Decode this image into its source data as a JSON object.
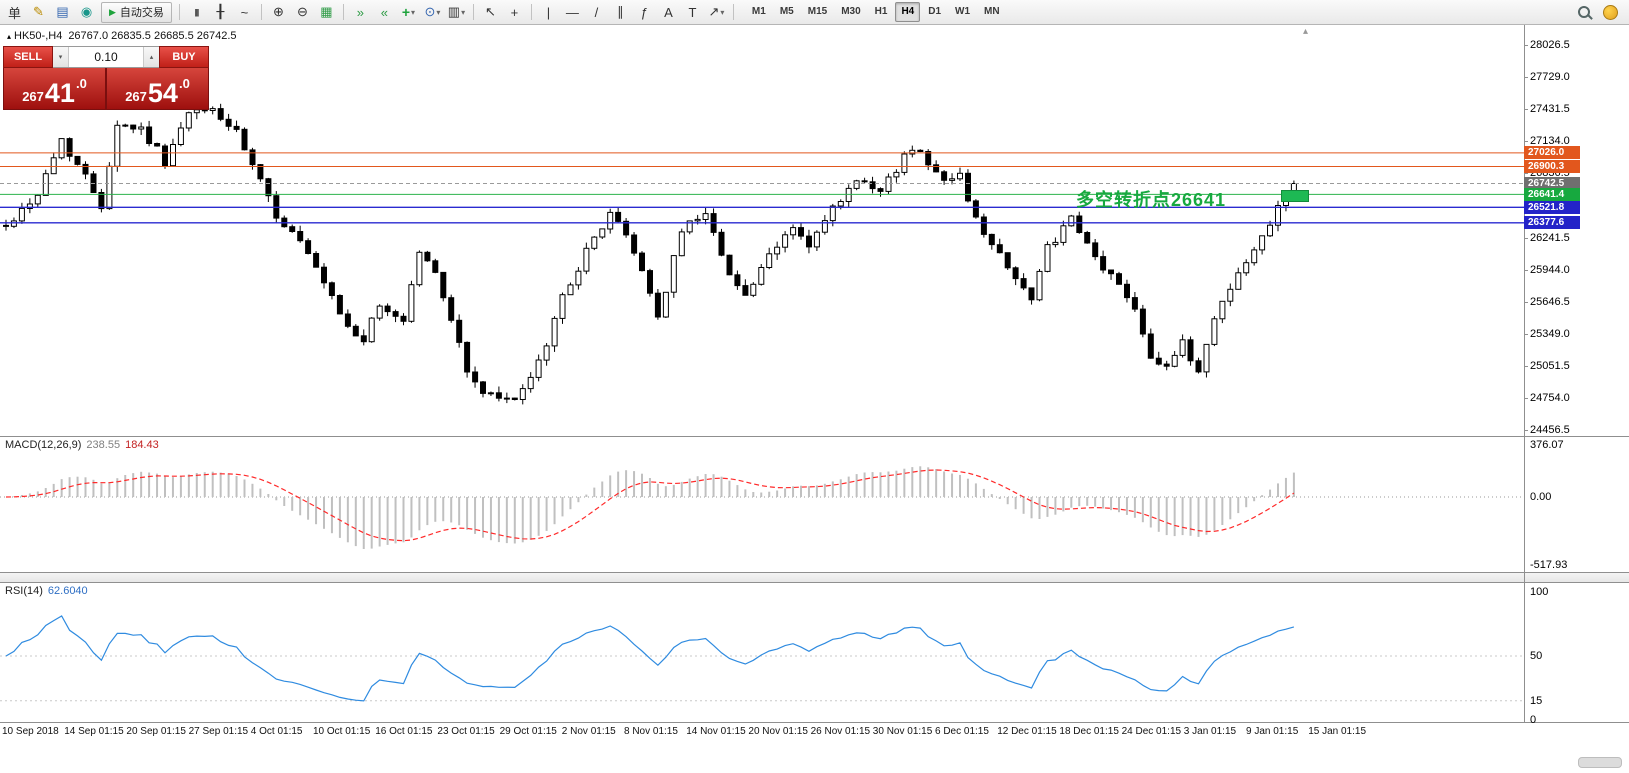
{
  "toolbar": {
    "items": [
      {
        "name": "new-order-icon",
        "glyph": "单"
      },
      {
        "name": "metaeditor-icon",
        "glyph": "✎",
        "color": "#b98a00"
      },
      {
        "name": "terminal-icon",
        "glyph": "▤",
        "color": "#3566b0"
      },
      {
        "name": "market-icon",
        "glyph": "◉",
        "color": "#18968a"
      },
      {
        "name": "autotrading-button",
        "glyph": "▶",
        "label": "自动交易",
        "glyph_color": "#1fa33d",
        "type": "button"
      },
      {
        "sep": true
      },
      {
        "name": "bar-chart-icon",
        "glyph": "|||",
        "small": true
      },
      {
        "name": "candlestick-icon",
        "glyph": "╂"
      },
      {
        "name": "line-chart-icon",
        "glyph": "~"
      },
      {
        "sep": true
      },
      {
        "name": "zoom-in-icon",
        "glyph": "⊕"
      },
      {
        "name": "zoom-out-icon",
        "glyph": "⊖"
      },
      {
        "name": "tile-windows-icon",
        "glyph": "▦",
        "color": "#2e9b46"
      },
      {
        "sep": true
      },
      {
        "name": "auto-scroll-icon",
        "glyph": "»",
        "color": "#2e9b46"
      },
      {
        "name": "chart-shift-icon",
        "glyph": "«",
        "color": "#2e9b46"
      },
      {
        "name": "indicators-icon",
        "glyph": "+",
        "color": "#1fa33d",
        "bold": true,
        "dropdown": true
      },
      {
        "name": "periods-icon",
        "glyph": "⊙",
        "color": "#3566b0",
        "dropdown": true
      },
      {
        "name": "templates-icon",
        "glyph": "▥",
        "dropdown": true
      },
      {
        "sep": true
      },
      {
        "name": "cursor-icon",
        "glyph": "↖"
      },
      {
        "name": "crosshair-icon",
        "glyph": "+"
      },
      {
        "sep": true
      },
      {
        "name": "vertical-line-icon",
        "glyph": "|"
      },
      {
        "name": "horizontal-line-icon",
        "glyph": "—"
      },
      {
        "name": "trendline-icon",
        "glyph": "/"
      },
      {
        "name": "channel-icon",
        "glyph": "∥"
      },
      {
        "name": "fibonacci-icon",
        "glyph": "ƒ"
      },
      {
        "name": "text-icon",
        "glyph": "A"
      },
      {
        "name": "label-icon",
        "glyph": "T"
      },
      {
        "name": "shapes-icon",
        "glyph": "↗",
        "dropdown": true
      },
      {
        "sep": true
      }
    ],
    "timeframes": [
      "M1",
      "M5",
      "M15",
      "M30",
      "H1",
      "H4",
      "D1",
      "W1",
      "MN"
    ],
    "active_timeframe": "H4"
  },
  "chart": {
    "marker": "▴",
    "symbol": "HK50-,H4",
    "ohlc": "26767.0 26835.5 26685.5 26742.5",
    "scroll_arrow": "▴"
  },
  "trade_widget": {
    "sell_label": "SELL",
    "buy_label": "BUY",
    "volume": "0.10",
    "dec": "▾",
    "inc": "▴",
    "sell_price": {
      "p1": "267",
      "big": "41",
      "p2": ".0"
    },
    "buy_price": {
      "p1": "267",
      "big": "54",
      "p2": ".0"
    }
  },
  "annotation": {
    "text": "多空转折点26641",
    "color": "#17a93f"
  },
  "levels": [
    {
      "label": "27026.0",
      "value": 27026.0,
      "line_color": "#e2571d",
      "tag_color": "#e2571d",
      "width": 1
    },
    {
      "label": "26900.3",
      "value": 26900.3,
      "line_color": "#e2571d",
      "tag_color": "#e2571d",
      "width": 1
    },
    {
      "label": "26742.5",
      "value": 26742.5,
      "line_color": "#9a9a9a",
      "tag_color": "#6f6f6f",
      "width": 1,
      "dashed": true
    },
    {
      "label": "26641.4",
      "value": 26641.4,
      "line_color": "#2bb24c",
      "tag_color": "#17a93f",
      "width": 1
    },
    {
      "label": "26521.8",
      "value": 26521.8,
      "line_color": "#2a2ad0",
      "tag_color": "#2323c8",
      "width": 1.4
    },
    {
      "label": "26377.6",
      "value": 26377.6,
      "line_color": "#2a2ad0",
      "tag_color": "#2323c8",
      "width": 1.4
    }
  ],
  "price_axis": {
    "max": 28026.5,
    "min": 24456.5,
    "ticks": [
      "28026.5",
      "27729.0",
      "27431.5",
      "27134.0",
      "26836.5",
      "26539.0",
      "26241.5",
      "25944.0",
      "25646.5",
      "25349.0",
      "25051.5",
      "24754.0",
      "24456.5"
    ]
  },
  "macd": {
    "name": "MACD(12,26,9)",
    "value_main": "238.55",
    "value_signal": "184.43",
    "axis": [
      "376.07",
      "0.00",
      "-517.93"
    ],
    "main_color": "#c0c0c0",
    "signal_color": "#ff2a2a"
  },
  "rsi": {
    "name": "RSI(14)",
    "value": "62.6040",
    "axis": [
      "100",
      "50",
      "15",
      "0"
    ],
    "levels": [
      50,
      15
    ],
    "line_color": "#2f8be0"
  },
  "time_axis": [
    "10 Sep 2018",
    "14 Sep 01:15",
    "20 Sep 01:15",
    "27 Sep 01:15",
    "4 Oct 01:15",
    "10 Oct 01:15",
    "16 Oct 01:15",
    "23 Oct 01:15",
    "29 Oct 01:15",
    "2 Nov 01:15",
    "8 Nov 01:15",
    "14 Nov 01:15",
    "20 Nov 01:15",
    "26 Nov 01:15",
    "30 Nov 01:15",
    "6 Dec 01:15",
    "12 Dec 01:15",
    "18 Dec 01:15",
    "24 Dec 01:15",
    "3 Jan 01:15",
    "9 Jan 01:15",
    "15 Jan 01:15"
  ],
  "chart_data": {
    "type": "candlestick",
    "symbol": "HK50-",
    "timeframe": "H4",
    "count": 163,
    "visible_price_range": [
      24456.5,
      28026.5
    ],
    "current_ohlc": {
      "open": 26767.0,
      "high": 26835.5,
      "low": 26685.5,
      "close": 26742.5
    },
    "bid": 26741.0,
    "ask": 26754.0,
    "close_path_anchors": [
      [
        0,
        26350
      ],
      [
        4,
        26650
      ],
      [
        7,
        27150
      ],
      [
        10,
        26800
      ],
      [
        12,
        26550
      ],
      [
        14,
        27300
      ],
      [
        17,
        27250
      ],
      [
        20,
        26950
      ],
      [
        23,
        27380
      ],
      [
        26,
        27430
      ],
      [
        29,
        27200
      ],
      [
        31,
        26900
      ],
      [
        34,
        26450
      ],
      [
        37,
        26200
      ],
      [
        40,
        25800
      ],
      [
        43,
        25400
      ],
      [
        45,
        25300
      ],
      [
        47,
        25600
      ],
      [
        50,
        25480
      ],
      [
        52,
        26120
      ],
      [
        54,
        25900
      ],
      [
        56,
        25500
      ],
      [
        58,
        25000
      ],
      [
        60,
        24800
      ],
      [
        63,
        24720
      ],
      [
        66,
        24900
      ],
      [
        68,
        25250
      ],
      [
        70,
        25700
      ],
      [
        73,
        26100
      ],
      [
        76,
        26480
      ],
      [
        78,
        26250
      ],
      [
        80,
        25950
      ],
      [
        82,
        25500
      ],
      [
        85,
        26300
      ],
      [
        88,
        26500
      ],
      [
        90,
        26050
      ],
      [
        93,
        25700
      ],
      [
        96,
        26050
      ],
      [
        99,
        26350
      ],
      [
        101,
        26150
      ],
      [
        104,
        26500
      ],
      [
        107,
        26750
      ],
      [
        110,
        26650
      ],
      [
        113,
        27000
      ],
      [
        115,
        27080
      ],
      [
        117,
        26820
      ],
      [
        120,
        26800
      ],
      [
        123,
        26250
      ],
      [
        126,
        26000
      ],
      [
        129,
        25650
      ],
      [
        131,
        26150
      ],
      [
        134,
        26400
      ],
      [
        137,
        26050
      ],
      [
        140,
        25800
      ],
      [
        142,
        25600
      ],
      [
        144,
        25150
      ],
      [
        146,
        25050
      ],
      [
        148,
        25250
      ],
      [
        150,
        25000
      ],
      [
        152,
        25500
      ],
      [
        154,
        25800
      ],
      [
        156,
        26000
      ],
      [
        158,
        26250
      ],
      [
        160,
        26550
      ],
      [
        162,
        26742.5
      ]
    ],
    "horizontal_levels": [
      27026.0,
      26900.3,
      26742.5,
      26641.4,
      26521.8,
      26377.6
    ],
    "indicators": [
      {
        "type": "macd",
        "params": [
          12,
          26,
          9
        ],
        "last_main": 238.55,
        "last_signal": 184.43,
        "axis_labels": [
          376.07,
          0.0,
          -517.93
        ]
      },
      {
        "type": "rsi",
        "params": [
          14
        ],
        "last": 62.604,
        "axis_labels": [
          100,
          50,
          15,
          0
        ]
      }
    ]
  }
}
